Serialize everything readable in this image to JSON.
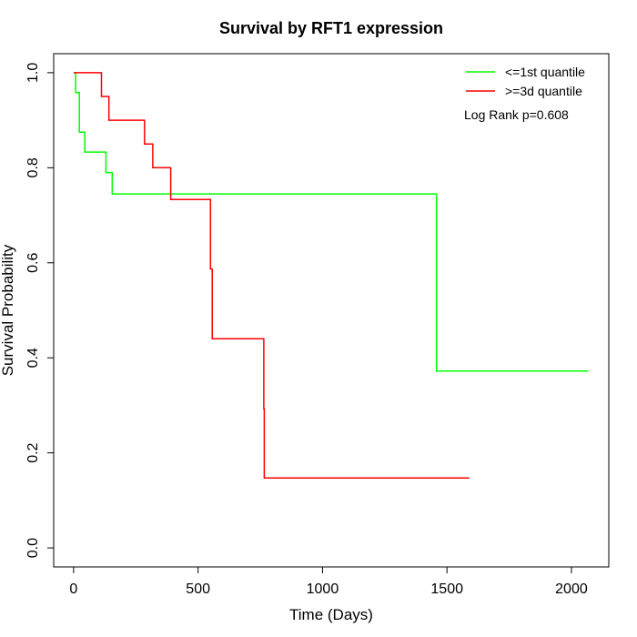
{
  "chart_data": {
    "type": "line",
    "title": "Survival by RFT1 expression",
    "xlabel": "Time (Days)",
    "ylabel": "Survival Probability",
    "xlim": [
      -80,
      2150
    ],
    "ylim": [
      -0.04,
      1.04
    ],
    "xticks": [
      0,
      500,
      1000,
      1500,
      2000
    ],
    "yticks": [
      0.0,
      0.2,
      0.4,
      0.6,
      0.8,
      1.0
    ],
    "xtick_labels": [
      "0",
      "500",
      "1000",
      "1500",
      "2000"
    ],
    "ytick_labels": [
      "0.0",
      "0.2",
      "0.4",
      "0.6",
      "0.8",
      "1.0"
    ],
    "annotation": "Log Rank p=0.608",
    "legend_position": "top-right",
    "grid": false,
    "series": [
      {
        "name": "<=1st quantile",
        "color": "#00ff00",
        "step": true,
        "x": [
          0,
          8,
          8,
          23,
          23,
          45,
          45,
          130,
          130,
          155,
          155,
          1458,
          1458,
          2068
        ],
        "y": [
          1.0,
          1.0,
          0.958,
          0.958,
          0.875,
          0.875,
          0.833,
          0.833,
          0.79,
          0.79,
          0.745,
          0.745,
          0.372,
          0.372
        ]
      },
      {
        "name": ">=3d quantile",
        "color": "#ff0000",
        "step": true,
        "x": [
          0,
          112,
          112,
          142,
          142,
          285,
          285,
          318,
          318,
          390,
          390,
          550,
          550,
          557,
          557,
          764,
          764,
          766,
          766,
          1590
        ],
        "y": [
          1.0,
          1.0,
          0.95,
          0.95,
          0.9,
          0.9,
          0.85,
          0.85,
          0.8,
          0.8,
          0.733,
          0.733,
          0.587,
          0.587,
          0.44,
          0.44,
          0.293,
          0.293,
          0.147,
          0.147
        ]
      }
    ]
  }
}
